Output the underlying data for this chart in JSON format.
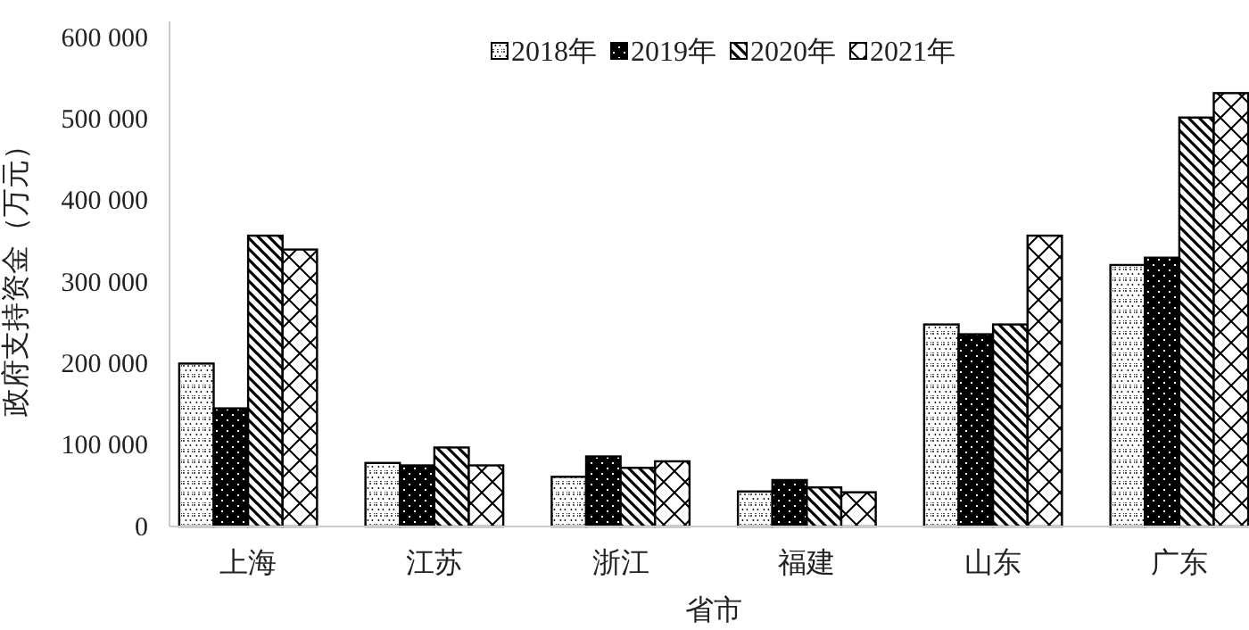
{
  "chart_data": {
    "type": "bar",
    "xlabel": "省市",
    "ylabel": "政府支持资金（万元）",
    "categories": [
      "上海",
      "江苏",
      "浙江",
      "福建",
      "山东",
      "广东"
    ],
    "series": [
      {
        "name": "2018年",
        "color": "#000000",
        "values": [
          200000,
          78000,
          61000,
          43000,
          248000,
          321000
        ]
      },
      {
        "name": "2019年",
        "color": "#000000",
        "values": [
          145000,
          75000,
          86000,
          57000,
          236000,
          330000
        ]
      },
      {
        "name": "2020年",
        "color": "#000000",
        "values": [
          357000,
          97000,
          72000,
          48000,
          248000,
          502000
        ]
      },
      {
        "name": "2021年",
        "color": "#000000",
        "values": [
          340000,
          75000,
          80000,
          42000,
          357000,
          532000
        ]
      }
    ],
    "ylim": [
      0,
      620000
    ],
    "yticks": [
      {
        "value": 0,
        "label": "0"
      },
      {
        "value": 100000,
        "label": "100 000"
      },
      {
        "value": 200000,
        "label": "200 000"
      },
      {
        "value": 300000,
        "label": "300 000"
      },
      {
        "value": 400000,
        "label": "400 000"
      },
      {
        "value": 500000,
        "label": "500 000"
      },
      {
        "value": 600000,
        "label": "600 000"
      }
    ],
    "legend": "top",
    "grid": false
  }
}
